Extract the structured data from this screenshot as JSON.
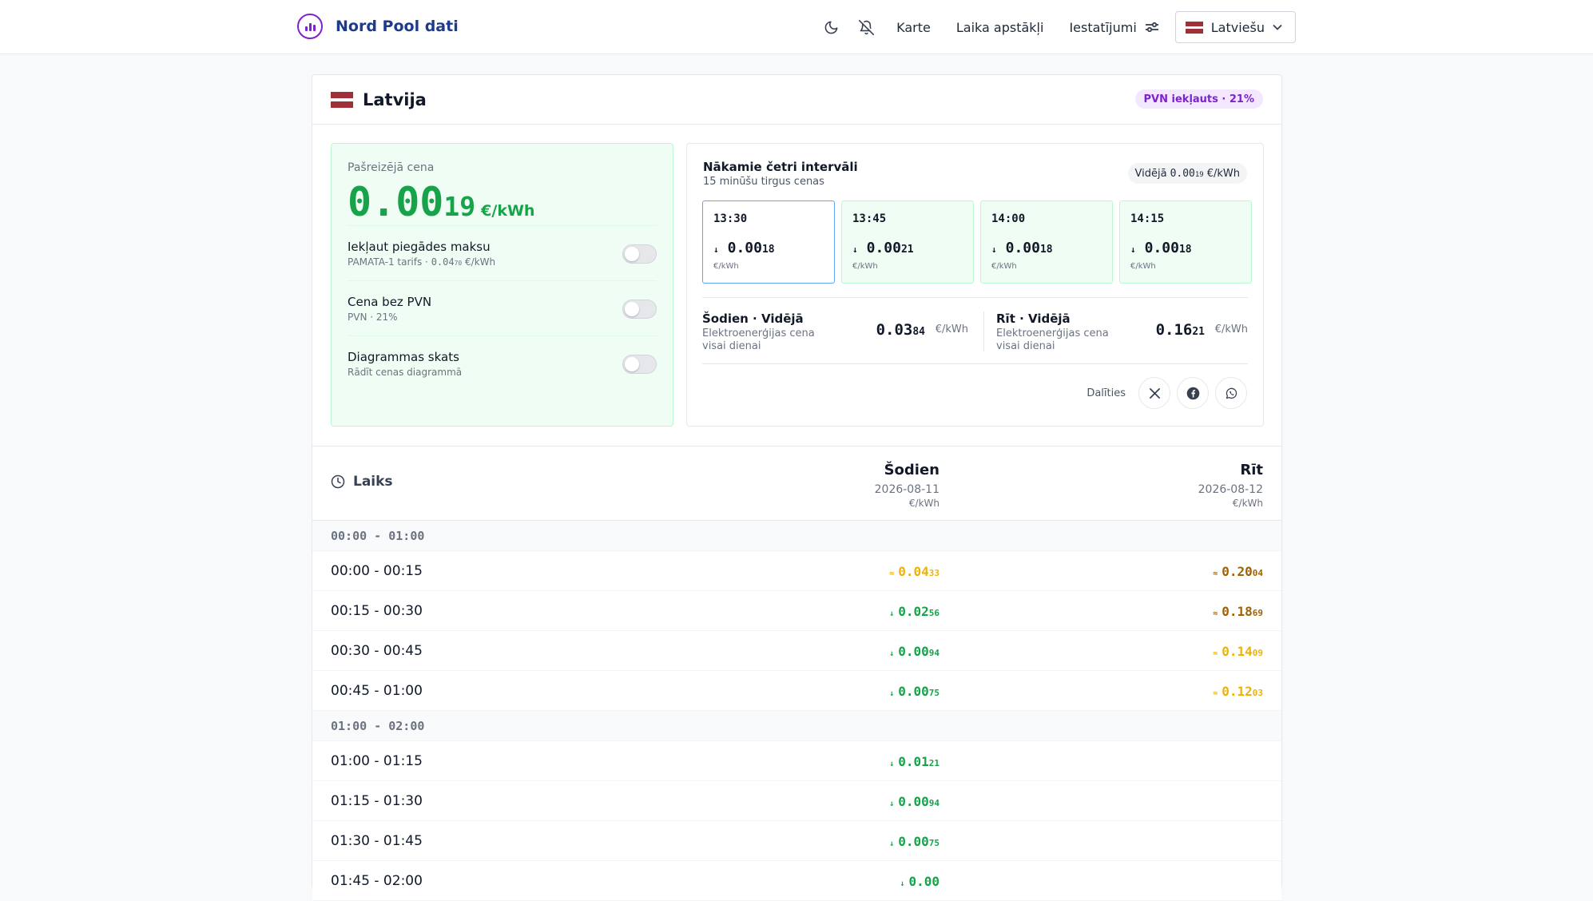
{
  "app": {
    "title": "Nord Pool dati"
  },
  "nav": {
    "links": [
      "Karte",
      "Laika apstākļi",
      "Iestatījumi"
    ],
    "language": "Latviešu"
  },
  "country": {
    "name": "Latvija",
    "vat_badge": "PVN iekļauts · 21%"
  },
  "current": {
    "label": "Pašreizējā cena",
    "price_main": "0.00",
    "price_small": "19",
    "unit": "€/kWh",
    "toggles": [
      {
        "title": "Iekļaut piegādes maksu",
        "sub": "PAMATA-1 tarifs · ",
        "sub_main": "0.04",
        "sub_small": "70",
        "sub_unit": " €/kWh",
        "on": false
      },
      {
        "title": "Cena bez PVN",
        "sub": "PVN · 21%",
        "on": false
      },
      {
        "title": "Diagrammas skats",
        "sub": "Rādīt cenas diagrammā",
        "on": false
      }
    ]
  },
  "intervals": {
    "title": "Nākamie četri intervāli",
    "subtitle": "15 minūšu tirgus cenas",
    "avg_label": "Vidējā",
    "avg_main": "0.00",
    "avg_small": "19",
    "avg_unit": "€/kWh",
    "tiles": [
      {
        "time": "13:30",
        "arrow": "↓",
        "main": "0.00",
        "small": "18",
        "unit": "€/kWh",
        "active": true
      },
      {
        "time": "13:45",
        "arrow": "↓",
        "main": "0.00",
        "small": "21",
        "unit": "€/kWh",
        "active": false
      },
      {
        "time": "14:00",
        "arrow": "↓",
        "main": "0.00",
        "small": "18",
        "unit": "€/kWh",
        "active": false
      },
      {
        "time": "14:15",
        "arrow": "↓",
        "main": "0.00",
        "small": "18",
        "unit": "€/kWh",
        "active": false
      }
    ],
    "today_avg": {
      "name": "Šodien · Vidējā",
      "desc": "Elektroenerģijas cena visai dienai",
      "main": "0.03",
      "small": "84",
      "unit": "€/kWh"
    },
    "tomorrow_avg": {
      "name": "Rīt · Vidējā",
      "desc": "Elektroenerģijas cena visai dienai",
      "main": "0.16",
      "small": "21",
      "unit": "€/kWh"
    },
    "share_label": "Dalīties"
  },
  "table": {
    "time_header": "Laiks",
    "today": {
      "day": "Šodien",
      "date": "2026-08-11",
      "unit": "€/kWh"
    },
    "tomorrow": {
      "day": "Rīt",
      "date": "2026-08-12",
      "unit": "€/kWh"
    },
    "groups": [
      {
        "hour": "00:00 - 01:00",
        "rows": [
          {
            "label": "00:00 - 00:15",
            "today": {
              "arrow": "≈",
              "main": "0.04",
              "small": "33",
              "color": "#eab308"
            },
            "tomorrow": {
              "arrow": "≈",
              "main": "0.20",
              "small": "04",
              "color": "#a16207"
            }
          },
          {
            "label": "00:15 - 00:30",
            "today": {
              "arrow": "↓",
              "main": "0.02",
              "small": "56",
              "color": "#16a34a"
            },
            "tomorrow": {
              "arrow": "≈",
              "main": "0.18",
              "small": "69",
              "color": "#a16207"
            }
          },
          {
            "label": "00:30 - 00:45",
            "today": {
              "arrow": "↓",
              "main": "0.00",
              "small": "94",
              "color": "#16a34a"
            },
            "tomorrow": {
              "arrow": "≈",
              "main": "0.14",
              "small": "09",
              "color": "#eab308"
            }
          },
          {
            "label": "00:45 - 01:00",
            "today": {
              "arrow": "↓",
              "main": "0.00",
              "small": "75",
              "color": "#16a34a"
            },
            "tomorrow": {
              "arrow": "≈",
              "main": "0.12",
              "small": "03",
              "color": "#eab308"
            }
          }
        ]
      },
      {
        "hour": "01:00 - 02:00",
        "rows": [
          {
            "label": "01:00 - 01:15",
            "today": {
              "arrow": "↓",
              "main": "0.01",
              "small": "21",
              "color": "#16a34a"
            }
          },
          {
            "label": "01:15 - 01:30",
            "today": {
              "arrow": "↓",
              "main": "0.00",
              "small": "94",
              "color": "#16a34a"
            }
          },
          {
            "label": "01:30 - 01:45",
            "today": {
              "arrow": "↓",
              "main": "0.00",
              "small": "75",
              "color": "#16a34a"
            }
          },
          {
            "label": "01:45 - 02:00",
            "today": {
              "arrow": "↓",
              "main": "0.00",
              "small": "",
              "color": "#16a34a"
            }
          }
        ]
      }
    ]
  }
}
